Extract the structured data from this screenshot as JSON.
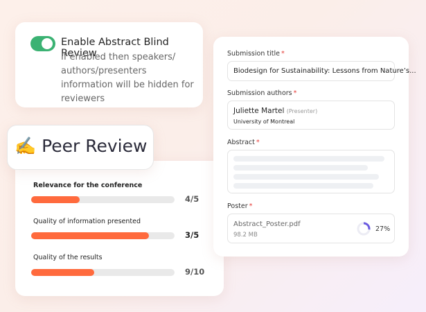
{
  "blind_review": {
    "title": "Enable Abstract Blind Review",
    "description": "If enabled then speakers/ authors/presenters information will be hidden for reviewers"
  },
  "peer_review": {
    "title": "✍️ Peer Review",
    "criteria": [
      {
        "label": "Relevance for the conference",
        "score": "4/5",
        "fill_percent": 34
      },
      {
        "label": "Quality of information presented",
        "score": "3/5",
        "fill_percent": 82
      },
      {
        "label": "Quality of the results",
        "score": "9/10",
        "fill_percent": 44
      }
    ]
  },
  "form": {
    "required_mark": "*",
    "title_label": "Submission title",
    "title_value": "Biodesign for Sustainability: Lessons from Nature’s...",
    "authors_label": "Submission authors",
    "author_name": "Juliette Martel",
    "author_role": "(Presenter)",
    "author_affiliation": "University of Montreal",
    "abstract_label": "Abstract",
    "poster_label": "Poster",
    "poster_file": "Abstract_Poster.pdf",
    "poster_size": "98.2 MB",
    "upload_percent": 27,
    "upload_label": "27%"
  }
}
